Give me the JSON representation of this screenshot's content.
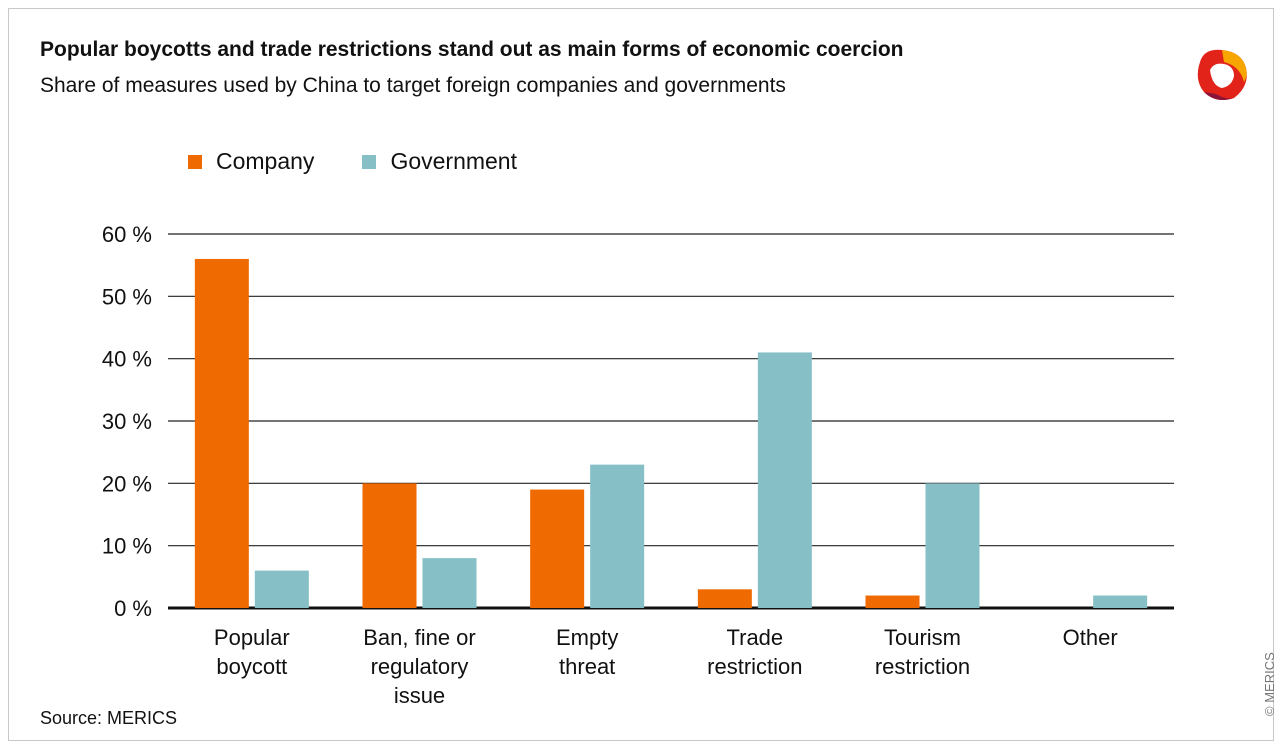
{
  "header": {
    "title": "Popular boycotts and trade restrictions stand out as main forms of economic coercion",
    "subtitle": "Share of measures used by China to target foreign companies and governments"
  },
  "source": "Source: MERICS",
  "copyright": "© MERICS",
  "logo_icon": "merics-logo-icon",
  "colors": {
    "company": "#ef6a00",
    "government": "#86bfc6",
    "gridline": "#222222",
    "axis": "#111111"
  },
  "chart_data": {
    "type": "bar",
    "categories": [
      [
        "Popular",
        "boycott"
      ],
      [
        "Ban, fine or",
        "regulatory",
        "issue"
      ],
      [
        "Empty",
        "threat"
      ],
      [
        "Trade",
        "restriction"
      ],
      [
        "Tourism",
        "restriction"
      ],
      [
        "Other"
      ]
    ],
    "series": [
      {
        "name": "Company",
        "values": [
          56,
          20,
          19,
          3,
          2,
          0
        ]
      },
      {
        "name": "Government",
        "values": [
          6,
          8,
          23,
          41,
          20,
          2
        ]
      }
    ],
    "yticks": [
      "0 %",
      "10 %",
      "20 %",
      "30 %",
      "40 %",
      "50 %",
      "60 %"
    ],
    "ylim": [
      0,
      60
    ],
    "unit": "%",
    "grid": true,
    "legend_position": "top-left"
  }
}
